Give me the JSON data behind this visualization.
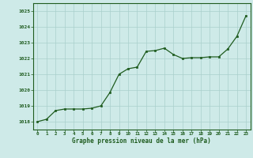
{
  "x": [
    0,
    1,
    2,
    3,
    4,
    5,
    6,
    7,
    8,
    9,
    10,
    11,
    12,
    13,
    14,
    15,
    16,
    17,
    18,
    19,
    20,
    21,
    22,
    23
  ],
  "y": [
    1018.0,
    1018.15,
    1018.7,
    1018.8,
    1018.8,
    1018.8,
    1018.85,
    1019.0,
    1019.85,
    1021.0,
    1021.35,
    1021.45,
    1022.45,
    1022.5,
    1022.65,
    1022.25,
    1022.0,
    1022.05,
    1022.05,
    1022.1,
    1022.1,
    1022.6,
    1023.4,
    1024.7
  ],
  "line_color": "#1f5c1f",
  "marker_color": "#1f5c1f",
  "bg_color": "#ceeae8",
  "grid_color": "#aacfcc",
  "xlabel": "Graphe pression niveau de la mer (hPa)",
  "xlabel_color": "#1f5c1f",
  "tick_color": "#1f5c1f",
  "ylim": [
    1017.5,
    1025.5
  ],
  "yticks": [
    1018,
    1019,
    1020,
    1021,
    1022,
    1023,
    1024,
    1025
  ],
  "xlim": [
    -0.5,
    23.5
  ],
  "xticks": [
    0,
    1,
    2,
    3,
    4,
    5,
    6,
    7,
    8,
    9,
    10,
    11,
    12,
    13,
    14,
    15,
    16,
    17,
    18,
    19,
    20,
    21,
    22,
    23
  ],
  "border_color": "#1f5c1f"
}
